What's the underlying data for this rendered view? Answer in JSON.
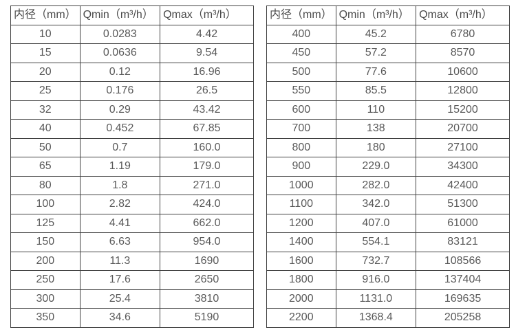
{
  "colors": {
    "background": "#ffffff",
    "border": "#404040",
    "header_text": "#4a4a4a",
    "cell_text": "#595959"
  },
  "tables": [
    {
      "name": "flow-rate-table-small-diameters",
      "headers": [
        "内径（mm）",
        "Qmin（m³/h）",
        "Qmax（m³/h）"
      ],
      "rows": [
        [
          "10",
          "0.0283",
          "4.42"
        ],
        [
          "15",
          "0.0636",
          "9.54"
        ],
        [
          "20",
          "0.12",
          "16.96"
        ],
        [
          "25",
          "0.176",
          "26.5"
        ],
        [
          "32",
          "0.29",
          "43.42"
        ],
        [
          "40",
          "0.452",
          "67.85"
        ],
        [
          "50",
          "0.7",
          "160.0"
        ],
        [
          "65",
          "1.19",
          "179.0"
        ],
        [
          "80",
          "1.8",
          "271.0"
        ],
        [
          "100",
          "2.82",
          "424.0"
        ],
        [
          "125",
          "4.41",
          "662.0"
        ],
        [
          "150",
          "6.63",
          "954.0"
        ],
        [
          "200",
          "11.3",
          "1690"
        ],
        [
          "250",
          "17.6",
          "2650"
        ],
        [
          "300",
          "25.4",
          "3810"
        ],
        [
          "350",
          "34.6",
          "5190"
        ]
      ]
    },
    {
      "name": "flow-rate-table-large-diameters",
      "headers": [
        "内径（mm）",
        "Qmin（m³/h）",
        "Qmax（m³/h）"
      ],
      "rows": [
        [
          "400",
          "45.2",
          "6780"
        ],
        [
          "450",
          "57.2",
          "8570"
        ],
        [
          "500",
          "77.6",
          "10600"
        ],
        [
          "550",
          "85.5",
          "12800"
        ],
        [
          "600",
          "110",
          "15200"
        ],
        [
          "700",
          "138",
          "20700"
        ],
        [
          "800",
          "180",
          "27100"
        ],
        [
          "900",
          "229.0",
          "34300"
        ],
        [
          "1000",
          "282.0",
          "42400"
        ],
        [
          "1100",
          "342.0",
          "51300"
        ],
        [
          "1200",
          "407.0",
          "61000"
        ],
        [
          "1400",
          "554.1",
          "83121"
        ],
        [
          "1600",
          "732.7",
          "108566"
        ],
        [
          "1800",
          "916.0",
          "137404"
        ],
        [
          "2000",
          "1131.0",
          "169635"
        ],
        [
          "2200",
          "1368.4",
          "205258"
        ]
      ]
    }
  ]
}
